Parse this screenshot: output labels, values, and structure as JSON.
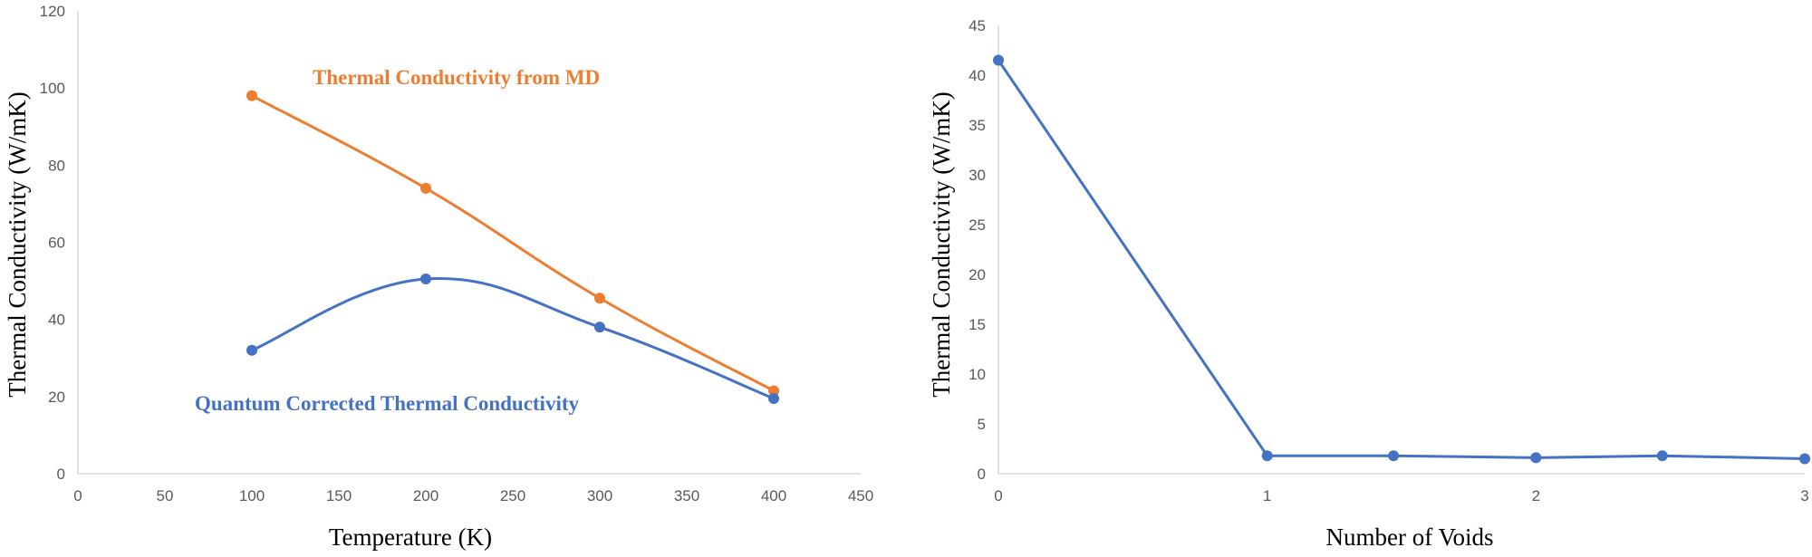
{
  "chart_data": [
    {
      "type": "line",
      "smooth": true,
      "title": "",
      "xlabel": "Temperature (K)",
      "ylabel": "Thermal Conductivity (W/mK)",
      "xlim": [
        0,
        450
      ],
      "ylim": [
        0,
        120
      ],
      "xticks": [
        "0",
        "50",
        "100",
        "150",
        "200",
        "250",
        "300",
        "350",
        "400",
        "450"
      ],
      "yticks": [
        "0",
        "20",
        "40",
        "60",
        "80",
        "100",
        "120"
      ],
      "grid": false,
      "legend": "none",
      "series": [
        {
          "key": "md",
          "name": "Thermal Conductivity from MD",
          "color": "#ED7D31",
          "x": [
            100,
            200,
            300,
            400
          ],
          "y": [
            98,
            74,
            45.5,
            21.5
          ]
        },
        {
          "key": "qc",
          "name": "Quantum Corrected Thermal Conductivity",
          "color": "#4472C4",
          "x": [
            100,
            200,
            300,
            400
          ],
          "y": [
            32,
            50.5,
            38,
            19.5
          ]
        }
      ]
    },
    {
      "type": "line",
      "smooth": false,
      "title": "",
      "xlabel": "Number of Voids",
      "ylabel": "Thermal Conductivity (W/mK)",
      "xlim": [
        0,
        3
      ],
      "ylim": [
        0,
        45
      ],
      "xticks": [
        "0",
        "1",
        "2",
        "3"
      ],
      "yticks": [
        "0",
        "5",
        "10",
        "15",
        "20",
        "25",
        "30",
        "35",
        "40",
        "45"
      ],
      "grid": false,
      "legend": "none",
      "series": [
        {
          "key": "voids",
          "color": "#4472C4",
          "x": [
            0,
            1,
            1.47,
            2,
            2.47,
            3
          ],
          "y": [
            41.5,
            1.8,
            1.8,
            1.6,
            1.8,
            1.5
          ]
        }
      ]
    }
  ]
}
